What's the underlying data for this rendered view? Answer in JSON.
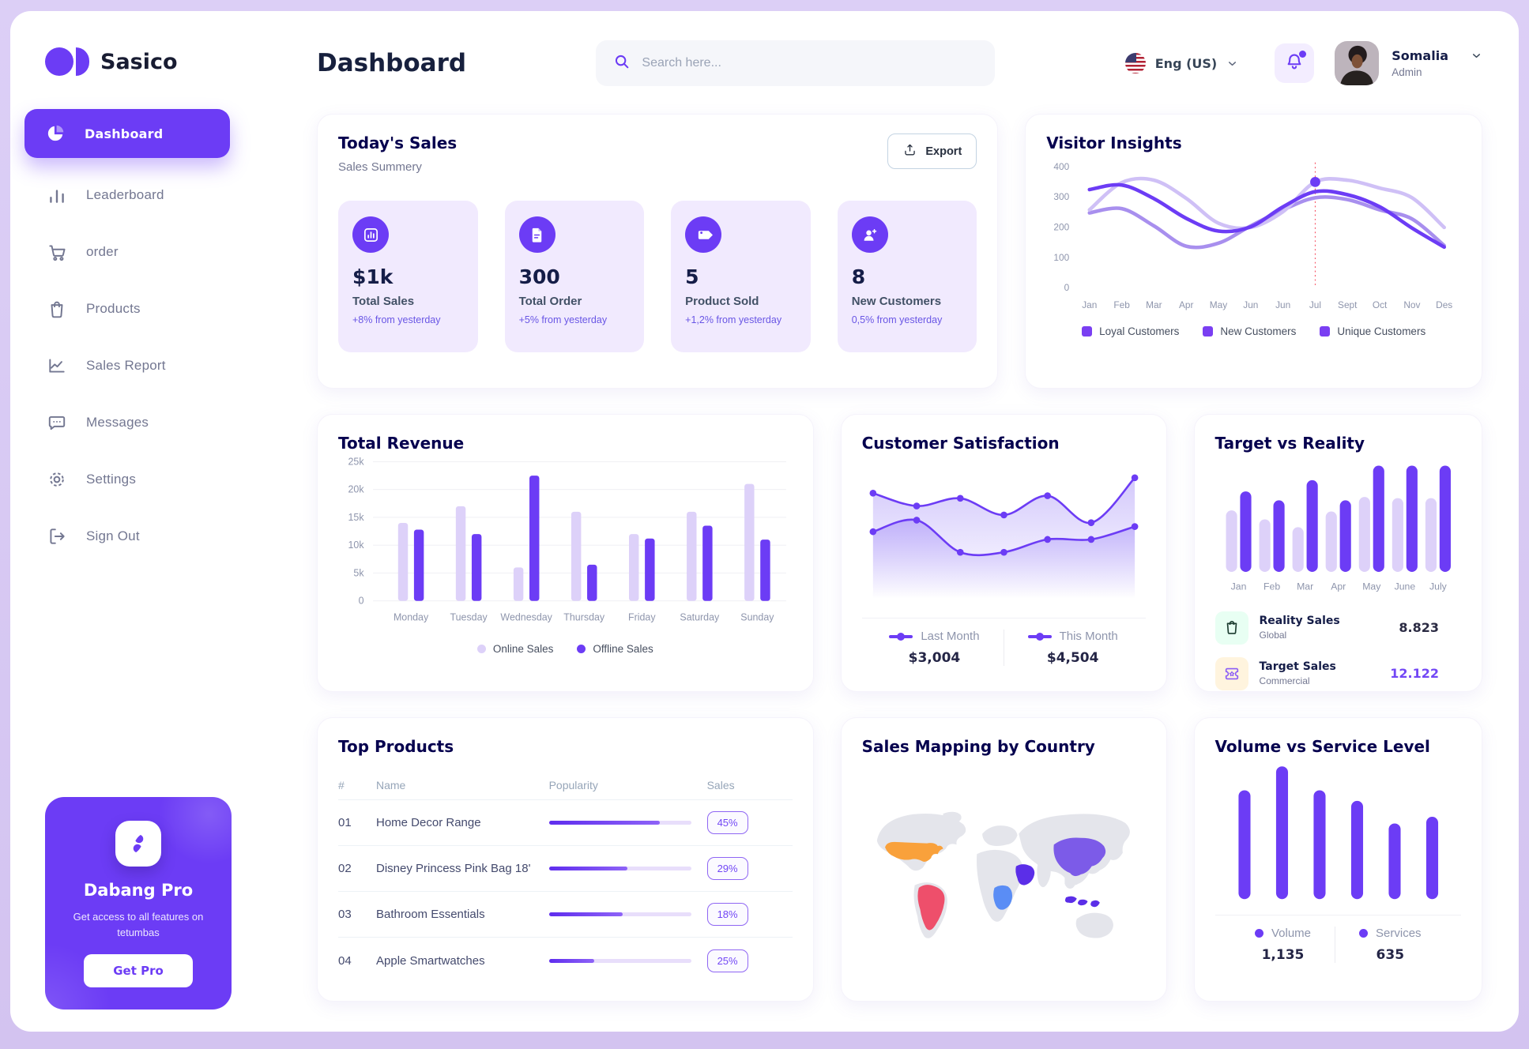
{
  "theme": {
    "accent": "#6C3CF5",
    "accent_light": "#DDD1F9",
    "navy": "#05004E",
    "heading": "#151D48",
    "text_gray": "#737791",
    "card_lavender": "#F1EAFE",
    "outer_bg": "#D8C9F3",
    "grid_line": "#F1F1F5"
  },
  "app": {
    "brand": "Sasico",
    "page_title": "Dashboard"
  },
  "header": {
    "search_placeholder": "Search here...",
    "language": "Eng (US)",
    "user_name": "Somalia",
    "user_role": "Admin"
  },
  "sidebar": {
    "items": [
      {
        "label": "Dashboard",
        "icon": "pie-chart-icon",
        "active": true
      },
      {
        "label": "Leaderboard",
        "icon": "bar-chart-icon",
        "active": false
      },
      {
        "label": "order",
        "icon": "cart-icon",
        "active": false
      },
      {
        "label": "Products",
        "icon": "bag-icon",
        "active": false
      },
      {
        "label": "Sales Report",
        "icon": "line-chart-icon",
        "active": false
      },
      {
        "label": "Messages",
        "icon": "chat-icon",
        "active": false
      },
      {
        "label": "Settings",
        "icon": "gear-icon",
        "active": false
      },
      {
        "label": "Sign Out",
        "icon": "sign-out-icon",
        "active": false
      }
    ],
    "promo": {
      "title": "Dabang Pro",
      "subtitle": "Get access to all features on tetumbas",
      "cta": "Get Pro",
      "icon": "spark-icon"
    }
  },
  "todays_sales": {
    "title": "Today's Sales",
    "subtitle": "Sales Summery",
    "export_label": "Export",
    "cards": [
      {
        "value": "$1k",
        "label": "Total Sales",
        "delta": "+8% from yesterday",
        "icon": "stat-chart-icon"
      },
      {
        "value": "300",
        "label": "Total Order",
        "delta": "+5% from yesterday",
        "icon": "stat-order-icon"
      },
      {
        "value": "5",
        "label": "Product Sold",
        "delta": "+1,2% from yesterday",
        "icon": "stat-tag-icon"
      },
      {
        "value": "8",
        "label": "New Customers",
        "delta": "0,5% from yesterday",
        "icon": "stat-user-icon"
      }
    ]
  },
  "chart_data": [
    {
      "id": "visitor-insights",
      "type": "line",
      "title": "Visitor Insights",
      "x": [
        "Jan",
        "Feb",
        "Mar",
        "Apr",
        "May",
        "Jun",
        "Jun",
        "Jul",
        "Sept",
        "Oct",
        "Nov",
        "Des"
      ],
      "ylim": [
        0,
        400
      ],
      "yticks": [
        0,
        100,
        200,
        300,
        400
      ],
      "legend_position": "bottom",
      "legend_swatch": "#7A3FF2",
      "series": [
        {
          "name": "Loyal Customers",
          "color": "#6C3CF5",
          "values": [
            325,
            340,
            295,
            230,
            188,
            202,
            268,
            318,
            308,
            268,
            198,
            135
          ]
        },
        {
          "name": "New Customers",
          "color": "#CFC0F6",
          "values": [
            258,
            348,
            356,
            296,
            214,
            200,
            252,
            350,
            356,
            330,
            298,
            200
          ]
        },
        {
          "name": "Unique Customers",
          "color": "#A88FEE",
          "values": [
            248,
            262,
            205,
            138,
            148,
            205,
            258,
            298,
            292,
            258,
            228,
            140
          ]
        }
      ],
      "marker": {
        "x_index": 7,
        "value": 350,
        "color": "#6C3CF5",
        "line_color": "#F64E60"
      }
    },
    {
      "id": "total-revenue",
      "type": "bar",
      "title": "Total Revenue",
      "categories": [
        "Monday",
        "Tuesday",
        "Wednesday",
        "Thursday",
        "Friday",
        "Saturday",
        "Sunday"
      ],
      "ylim": [
        0,
        25000
      ],
      "yticks": [
        {
          "v": 0,
          "label": "0"
        },
        {
          "v": 5000,
          "label": "5k"
        },
        {
          "v": 10000,
          "label": "10k"
        },
        {
          "v": 15000,
          "label": "15k"
        },
        {
          "v": 20000,
          "label": "20k"
        },
        {
          "v": 25000,
          "label": "25k"
        }
      ],
      "grid": true,
      "legend_position": "bottom",
      "series": [
        {
          "name": "Online Sales",
          "color": "#DDD1F9",
          "values": [
            14000,
            17000,
            6000,
            16000,
            12000,
            16000,
            21000
          ]
        },
        {
          "name": "Offline Sales",
          "color": "#6C3CF5",
          "values": [
            12800,
            12000,
            22500,
            6500,
            11200,
            13500,
            11000
          ]
        }
      ]
    },
    {
      "id": "customer-satisfaction",
      "type": "area",
      "title": "Customer Satisfaction",
      "fill_color": "#7B5BF5",
      "ylim": [
        0,
        100
      ],
      "series": [
        {
          "name": "Last Month",
          "total": "$3,004",
          "color": "#6C3CF5",
          "values": [
            48,
            57,
            32,
            32,
            42,
            42,
            52
          ]
        },
        {
          "name": "This Month",
          "total": "$4,504",
          "color": "#6C3CF5",
          "values": [
            78,
            68,
            74,
            61,
            76,
            55,
            90
          ]
        }
      ]
    },
    {
      "id": "target-vs-reality",
      "type": "bar",
      "title": "Target vs Reality",
      "categories": [
        "Jan",
        "Feb",
        "Mar",
        "Apr",
        "May",
        "June",
        "July"
      ],
      "ylim": [
        0,
        10
      ],
      "series": [
        {
          "name": "Reality Sales",
          "subtitle": "Global",
          "value_label": "8.823",
          "value_color": "#2B2B43",
          "color": "#DDD1F9",
          "icon_bg": "#E8FFF3",
          "icon": "bag-small-icon",
          "values": [
            5.5,
            4.7,
            4.0,
            5.4,
            6.7,
            6.6,
            6.6
          ]
        },
        {
          "name": "Target Sales",
          "subtitle": "Commercial",
          "value_label": "12.122",
          "value_color": "#7247F5",
          "color": "#6C3CF5",
          "icon_bg": "#FFF4DE",
          "icon": "ticket-icon",
          "values": [
            7.2,
            6.4,
            8.2,
            6.4,
            9.5,
            9.5,
            9.5
          ]
        }
      ]
    },
    {
      "id": "volume-vs-service",
      "type": "bar",
      "title": "Volume vs Service Level",
      "values": [
        82,
        100,
        82,
        74,
        57,
        62
      ],
      "ylim": [
        0,
        100
      ],
      "bar_color": "#6C3CF5",
      "legend": [
        {
          "label": "Volume",
          "value": "1,135",
          "dot": "#6C3CF5"
        },
        {
          "label": "Services",
          "value": "635",
          "dot": "#6C3CF5"
        }
      ]
    }
  ],
  "top_products": {
    "title": "Top Products",
    "columns": [
      "#",
      "Name",
      "Popularity",
      "Sales"
    ],
    "rows": [
      {
        "num": "01",
        "name": "Home Decor Range",
        "popularity": 78,
        "sales": "45%"
      },
      {
        "num": "02",
        "name": "Disney Princess Pink Bag 18'",
        "popularity": 55,
        "sales": "29%"
      },
      {
        "num": "03",
        "name": "Bathroom Essentials",
        "popularity": 52,
        "sales": "18%"
      },
      {
        "num": "04",
        "name": "Apple Smartwatches",
        "popularity": 32,
        "sales": "25%"
      }
    ]
  },
  "sales_map": {
    "title": "Sales Mapping by Country",
    "countries": [
      {
        "key": "usa",
        "name": "United States",
        "color": "#F9A13B"
      },
      {
        "key": "brazil",
        "name": "Brazil",
        "color": "#EE4F6B"
      },
      {
        "key": "drcongo",
        "name": "DR Congo",
        "color": "#5A8DF5"
      },
      {
        "key": "saudi",
        "name": "Saudi Arabia",
        "color": "#5B2EE8"
      },
      {
        "key": "china",
        "name": "China",
        "color": "#7C5BE8"
      },
      {
        "key": "indonesia",
        "name": "Indonesia",
        "color": "#5B2EE8"
      }
    ]
  }
}
